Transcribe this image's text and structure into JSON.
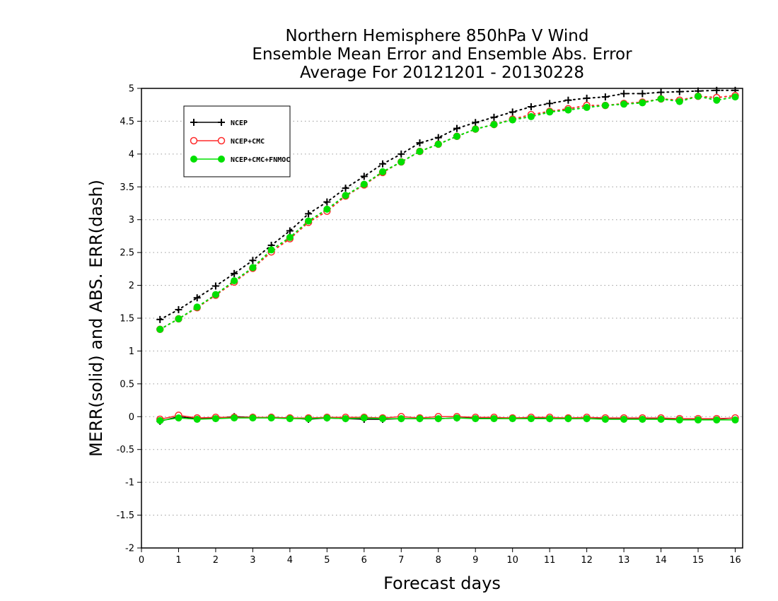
{
  "chart_data": {
    "type": "line",
    "title": [
      "Northern Hemisphere 850hPa V Wind",
      "Ensemble Mean Error and Ensemble Abs. Error",
      "Average For 20121201 - 20130228"
    ],
    "xlabel": "Forecast days",
    "ylabel": "MERR(solid) and ABS. ERR(dash)",
    "xlim": [
      0,
      16.2
    ],
    "ylim": [
      -2,
      5
    ],
    "xticks": [
      "0",
      "1",
      "2",
      "3",
      "4",
      "5",
      "6",
      "7",
      "8",
      "9",
      "10",
      "11",
      "12",
      "13",
      "14",
      "15",
      "16"
    ],
    "yticks": [
      "5",
      "4.5",
      "4",
      "3.5",
      "3",
      "2.5",
      "2",
      "1.5",
      "1",
      "0.5",
      "0",
      "-0.5",
      "-1",
      "-1.5",
      "-2"
    ],
    "grid": "horizontal dotted",
    "legend_position": "top-left",
    "x": [
      0.5,
      1,
      1.5,
      2,
      2.5,
      3,
      3.5,
      4,
      4.5,
      5,
      5.5,
      6,
      6.5,
      7,
      7.5,
      8,
      8.5,
      9,
      9.5,
      10,
      10.5,
      11,
      11.5,
      12,
      12.5,
      13,
      13.5,
      14,
      14.5,
      15,
      15.5,
      16
    ],
    "series": [
      {
        "name": "NCEP",
        "color": "#000000",
        "marker": "plus",
        "abs_err": [
          1.48,
          1.63,
          1.81,
          1.99,
          2.18,
          2.38,
          2.61,
          2.83,
          3.09,
          3.27,
          3.48,
          3.66,
          3.85,
          4.0,
          4.17,
          4.25,
          4.39,
          4.48,
          4.56,
          4.64,
          4.72,
          4.77,
          4.82,
          4.85,
          4.87,
          4.92,
          4.92,
          4.94,
          4.95,
          4.96,
          4.97,
          4.97
        ],
        "mean_err": [
          -0.07,
          0.0,
          -0.03,
          -0.02,
          0.0,
          -0.01,
          -0.01,
          -0.02,
          -0.04,
          -0.02,
          -0.03,
          -0.04,
          -0.04,
          -0.03,
          -0.03,
          -0.03,
          -0.02,
          -0.02,
          -0.02,
          -0.02,
          -0.02,
          -0.03,
          -0.03,
          -0.03,
          -0.03,
          -0.03,
          -0.03,
          -0.03,
          -0.04,
          -0.04,
          -0.04,
          -0.02
        ]
      },
      {
        "name": "NCEP+CMC",
        "color": "#ff2a2a",
        "marker": "open-circle",
        "abs_err": [
          1.33,
          1.49,
          1.66,
          1.85,
          2.05,
          2.26,
          2.51,
          2.71,
          2.96,
          3.13,
          3.36,
          3.53,
          3.72,
          3.88,
          4.04,
          4.15,
          4.27,
          4.38,
          4.45,
          4.53,
          4.6,
          4.65,
          4.69,
          4.74,
          4.74,
          4.77,
          4.79,
          4.84,
          4.82,
          4.88,
          4.86,
          4.89
        ],
        "mean_err": [
          -0.04,
          0.02,
          -0.02,
          -0.01,
          -0.01,
          -0.01,
          -0.01,
          -0.02,
          -0.02,
          -0.01,
          -0.01,
          -0.01,
          -0.02,
          0.0,
          -0.02,
          0.0,
          0.0,
          -0.01,
          -0.01,
          -0.02,
          -0.01,
          -0.01,
          -0.02,
          -0.01,
          -0.02,
          -0.02,
          -0.02,
          -0.02,
          -0.03,
          -0.03,
          -0.03,
          -0.02
        ]
      },
      {
        "name": "NCEP+CMC+FNMOC",
        "color": "#00e000",
        "marker": "filled-circle",
        "abs_err": [
          1.33,
          1.49,
          1.67,
          1.86,
          2.07,
          2.27,
          2.54,
          2.73,
          2.98,
          3.16,
          3.37,
          3.54,
          3.73,
          3.88,
          4.04,
          4.15,
          4.27,
          4.38,
          4.45,
          4.52,
          4.57,
          4.64,
          4.67,
          4.71,
          4.74,
          4.76,
          4.78,
          4.84,
          4.8,
          4.88,
          4.82,
          4.87
        ],
        "mean_err": [
          -0.06,
          -0.02,
          -0.04,
          -0.03,
          -0.02,
          -0.02,
          -0.02,
          -0.03,
          -0.03,
          -0.02,
          -0.03,
          -0.02,
          -0.03,
          -0.03,
          -0.03,
          -0.03,
          -0.02,
          -0.03,
          -0.03,
          -0.03,
          -0.03,
          -0.03,
          -0.03,
          -0.03,
          -0.04,
          -0.04,
          -0.04,
          -0.04,
          -0.05,
          -0.05,
          -0.05,
          -0.05
        ]
      }
    ]
  }
}
